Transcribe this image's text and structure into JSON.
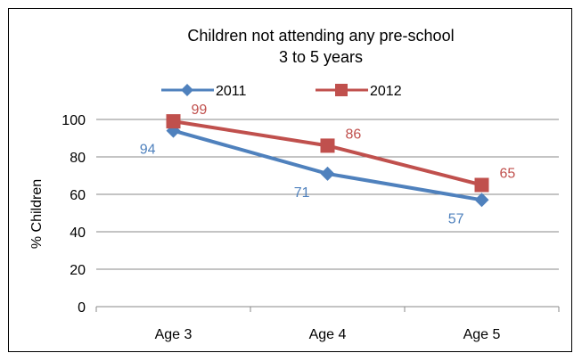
{
  "chart_data": {
    "type": "line",
    "title": "Children not attending any pre-school",
    "subtitle": "3 to 5 years",
    "categories": [
      "Age 3",
      "Age 4",
      "Age 5"
    ],
    "ylabel": "% Children",
    "ylim": [
      0,
      100
    ],
    "yticks": [
      0,
      20,
      40,
      60,
      80,
      100
    ],
    "grid": true,
    "legend_position": "top",
    "series": [
      {
        "name": "2011",
        "values": [
          94,
          71,
          57
        ],
        "color": "#4F81BD",
        "marker": "diamond"
      },
      {
        "name": "2012",
        "values": [
          99,
          86,
          65
        ],
        "color": "#C0504D",
        "marker": "square"
      }
    ]
  }
}
